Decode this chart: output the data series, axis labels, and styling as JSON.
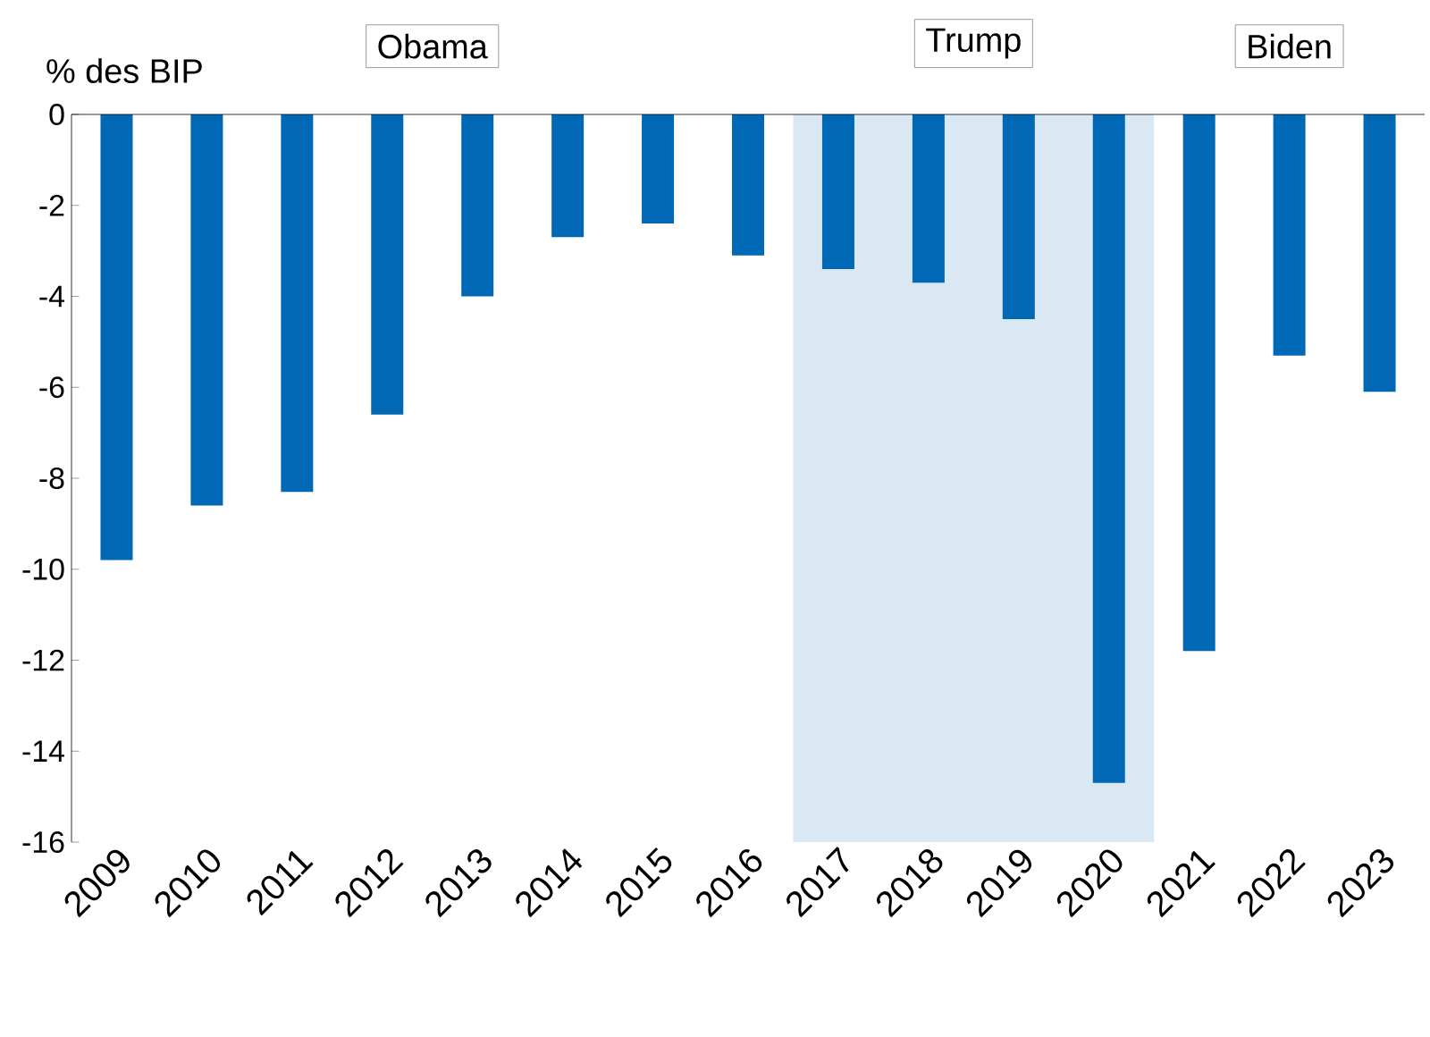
{
  "chart_data": {
    "type": "bar",
    "ylabel": "% des BIP",
    "categories": [
      "2009",
      "2010",
      "2011",
      "2012",
      "2013",
      "2014",
      "2015",
      "2016",
      "2017",
      "2018",
      "2019",
      "2020",
      "2021",
      "2022",
      "2023"
    ],
    "values": [
      -9.8,
      -8.6,
      -8.3,
      -6.6,
      -4.0,
      -2.7,
      -2.4,
      -3.1,
      -3.4,
      -3.7,
      -4.5,
      -14.7,
      -11.8,
      -5.3,
      -6.1
    ],
    "color": "#0068b4",
    "ylim": [
      -16,
      0
    ],
    "yticks": [
      -16,
      -14,
      -12,
      -10,
      -8,
      -6,
      -4,
      -2,
      0
    ],
    "bands": [
      {
        "axis": "x",
        "from": "2017",
        "to": "2020",
        "color": "#d9e8f3"
      }
    ],
    "annotations": [
      "Obama",
      "Trump",
      "Biden"
    ],
    "grid": false
  }
}
